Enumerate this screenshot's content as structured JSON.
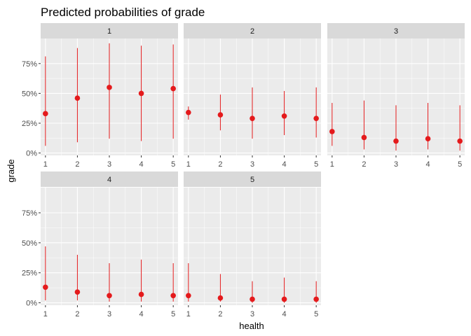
{
  "chart_data": {
    "type": "scatter",
    "title": "Predicted probabilities of grade",
    "xlabel": "health",
    "ylabel": "grade",
    "x": [
      1,
      2,
      3,
      4,
      5
    ],
    "ylim": [
      -0.02,
      0.96
    ],
    "yticks": [
      0,
      0.25,
      0.5,
      0.75
    ],
    "ytick_labels": [
      "0%",
      "25%",
      "50%",
      "75%"
    ],
    "grid": true,
    "legend": "none",
    "colors": {
      "point": "#e41a1c",
      "panel_bg": "#ebebeb",
      "strip_bg": "#d9d9d9",
      "grid": "#ffffff"
    },
    "facets": [
      {
        "label": "1",
        "values": [
          0.33,
          0.46,
          0.55,
          0.5,
          0.54
        ],
        "lower": [
          0.06,
          0.09,
          0.12,
          0.1,
          0.12
        ],
        "upper": [
          0.81,
          0.88,
          0.92,
          0.9,
          0.91
        ]
      },
      {
        "label": "2",
        "values": [
          0.34,
          0.32,
          0.29,
          0.31,
          0.29
        ],
        "lower": [
          0.28,
          0.19,
          0.12,
          0.15,
          0.13
        ],
        "upper": [
          0.39,
          0.49,
          0.55,
          0.52,
          0.55
        ]
      },
      {
        "label": "3",
        "values": [
          0.18,
          0.13,
          0.1,
          0.12,
          0.1
        ],
        "lower": [
          0.06,
          0.03,
          0.02,
          0.03,
          0.02
        ],
        "upper": [
          0.42,
          0.44,
          0.4,
          0.42,
          0.4
        ]
      },
      {
        "label": "4",
        "values": [
          0.13,
          0.09,
          0.06,
          0.07,
          0.06
        ],
        "lower": [
          0.02,
          0.02,
          0.01,
          0.01,
          0.01
        ],
        "upper": [
          0.47,
          0.4,
          0.33,
          0.36,
          0.33
        ]
      },
      {
        "label": "5",
        "values": [
          0.06,
          0.04,
          0.03,
          0.03,
          0.03
        ],
        "lower": [
          0.01,
          0.01,
          0.0,
          0.0,
          0.0
        ],
        "upper": [
          0.33,
          0.24,
          0.18,
          0.21,
          0.18
        ]
      }
    ]
  }
}
